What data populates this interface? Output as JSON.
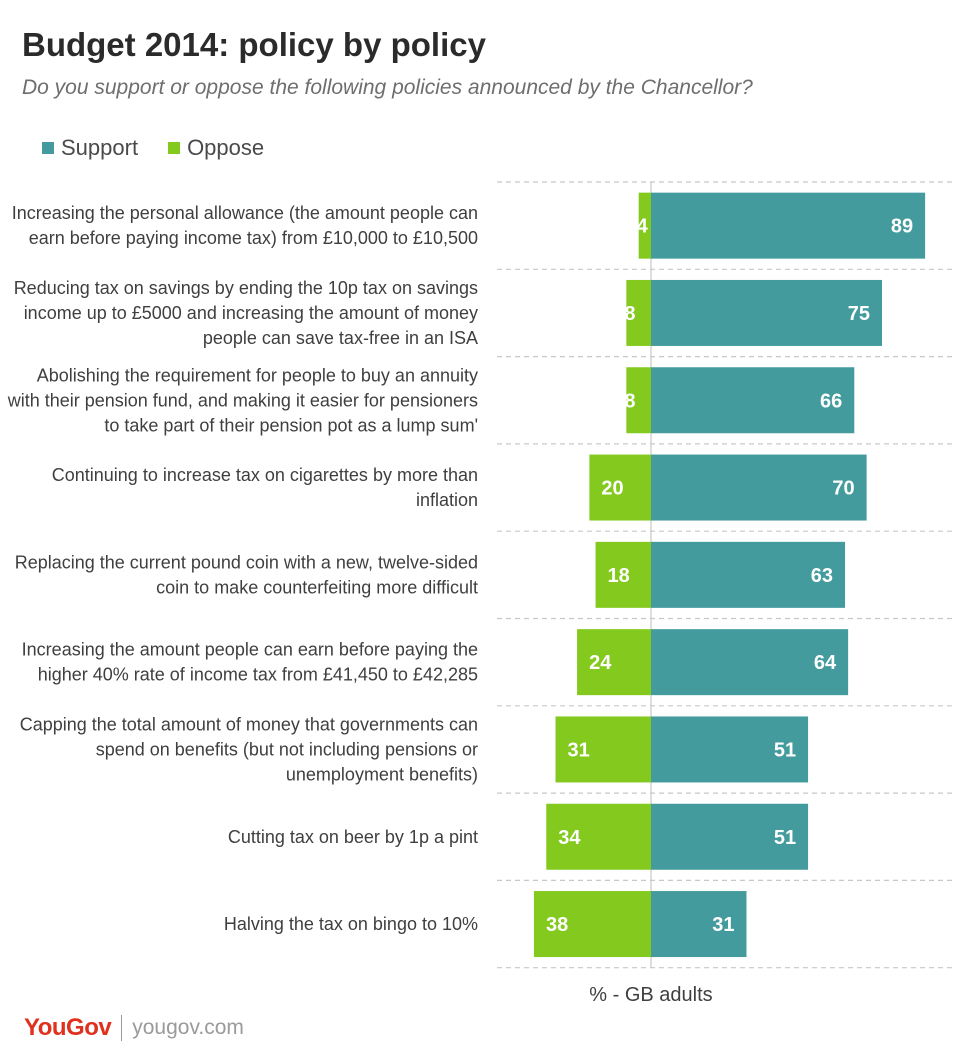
{
  "title": "Budget 2014: policy by policy",
  "subtitle": "Do you support or oppose the following policies announced  by the Chancellor?",
  "legend": [
    {
      "label": "Support",
      "color": "#439b9e"
    },
    {
      "label": "Oppose",
      "color": "#83c91e"
    }
  ],
  "footer": {
    "logo": "YouGov",
    "url": "yougov.com"
  },
  "chart_data": {
    "type": "bar",
    "orientation": "horizontal-diverging",
    "xlabel": "% - GB adults",
    "categories": [
      [
        "Increasing the personal allowance (the amount people can",
        "earn before paying income tax) from £10,000 to £10,500"
      ],
      [
        "Reducing tax on savings by ending the 10p tax on savings",
        "income up to £5000 and increasing the amount of money",
        "people can save tax-free in an ISA"
      ],
      [
        "Abolishing the requirement for people to buy an annuity",
        "with their pension fund, and making it easier for pensioners",
        "to take part of their pension pot as a lump sum'"
      ],
      [
        "Continuing to increase tax on cigarettes by more than",
        "inflation"
      ],
      [
        "Replacing the current pound coin with a new, twelve-sided",
        "coin to make counterfeiting more difficult"
      ],
      [
        "Increasing the amount people can earn before paying the",
        "higher 40% rate of income tax from £41,450 to £42,285"
      ],
      [
        "Capping the total amount of money that governments can",
        "spend on benefits (but not including pensions or",
        "unemployment benefits)"
      ],
      [
        "Cutting tax on beer by 1p a pint"
      ],
      [
        "Halving the tax on bingo to 10%"
      ]
    ],
    "series": [
      {
        "name": "Support",
        "color": "#439b9e",
        "values": [
          89,
          75,
          66,
          70,
          63,
          64,
          51,
          51,
          31
        ]
      },
      {
        "name": "Oppose",
        "color": "#83c91e",
        "values": [
          4,
          8,
          8,
          20,
          18,
          24,
          31,
          34,
          38
        ]
      }
    ],
    "grid": true
  }
}
